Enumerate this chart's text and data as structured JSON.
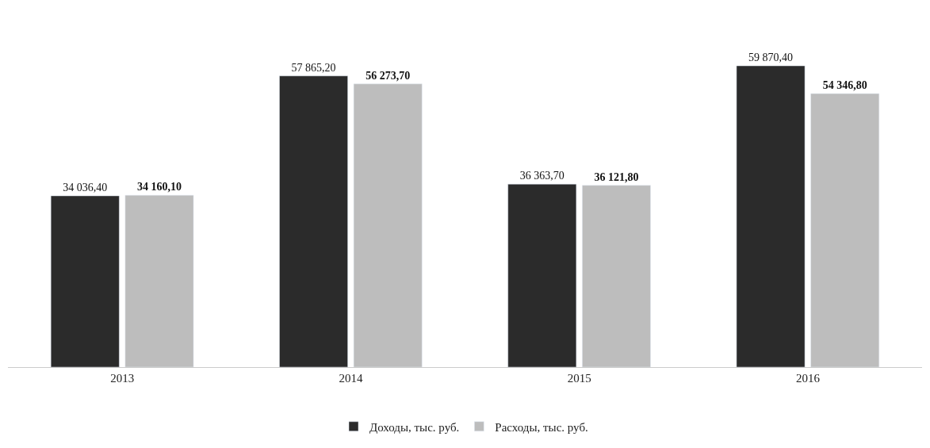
{
  "chart_data": {
    "type": "bar",
    "categories": [
      "2013",
      "2014",
      "2015",
      "2016"
    ],
    "series": [
      {
        "name": "Доходы, тыс. руб.",
        "color": "#2b2b2b",
        "values": [
          34036.4,
          57865.2,
          36363.7,
          59870.4
        ],
        "value_labels": [
          "34 036,40",
          "57 865,20",
          "36 363,70",
          "59 870,40"
        ]
      },
      {
        "name": "Расходы, тыс. руб.",
        "color": "#bdbdbd",
        "values": [
          34160.1,
          56273.7,
          36121.8,
          54346.8
        ],
        "value_labels": [
          "34 160,10",
          "56 273,70",
          "36 121,80",
          "54 346,80"
        ]
      }
    ],
    "legend": "bottom"
  }
}
